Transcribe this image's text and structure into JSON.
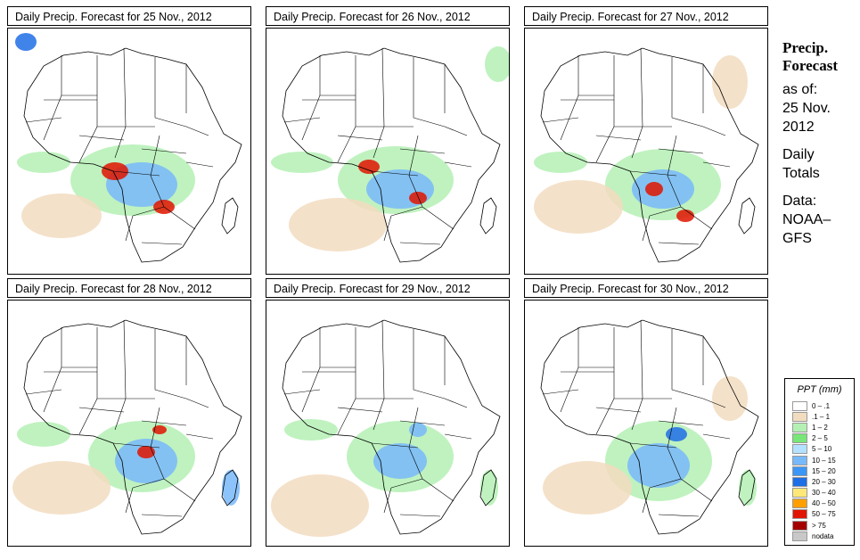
{
  "panels": [
    {
      "title": "Daily Precip. Forecast for  25 Nov., 2012"
    },
    {
      "title": "Daily Precip. Forecast for  26 Nov., 2012"
    },
    {
      "title": "Daily Precip. Forecast for  27 Nov., 2012"
    },
    {
      "title": "Daily Precip. Forecast for  28 Nov., 2012"
    },
    {
      "title": "Daily Precip. Forecast for  29 Nov., 2012"
    },
    {
      "title": "Daily Precip. Forecast for  30 Nov., 2012"
    }
  ],
  "side": {
    "line1": "Precip.",
    "line2": "Forecast",
    "asof1": "as of:",
    "asof2": "25 Nov.",
    "asof3": "2012",
    "daily1": "Daily",
    "daily2": "Totals",
    "data1": "Data:",
    "data2": "NOAA–",
    "data3": "GFS"
  },
  "legend": {
    "title": "PPT (mm)",
    "items": [
      {
        "label": "0 – .1",
        "color": "#ffffff"
      },
      {
        "label": ".1 – 1",
        "color": "#f2dcc0"
      },
      {
        "label": "1 – 2",
        "color": "#b4f0b4"
      },
      {
        "label": "2 – 5",
        "color": "#78e678"
      },
      {
        "label": "5 – 10",
        "color": "#b4e1ff"
      },
      {
        "label": "10 – 15",
        "color": "#78b9fa"
      },
      {
        "label": "15 – 20",
        "color": "#3c96f5"
      },
      {
        "label": "20 – 30",
        "color": "#1e6ee6"
      },
      {
        "label": "30 – 40",
        "color": "#ffe878"
      },
      {
        "label": "40 – 50",
        "color": "#ffa000"
      },
      {
        "label": "50 – 75",
        "color": "#e11400"
      },
      {
        "label": "> 75",
        "color": "#a50000"
      },
      {
        "label": "nodata",
        "color": "#c8c8c8"
      }
    ]
  },
  "colors": {
    "land": "#ffffff",
    "trace": "#f2dcc0",
    "light": "#b4f0b4",
    "moderate": "#78e678",
    "heavy": "#78b9fa",
    "veryheavy": "#1e6ee6",
    "extreme": "#e11400",
    "border": "#000000"
  }
}
